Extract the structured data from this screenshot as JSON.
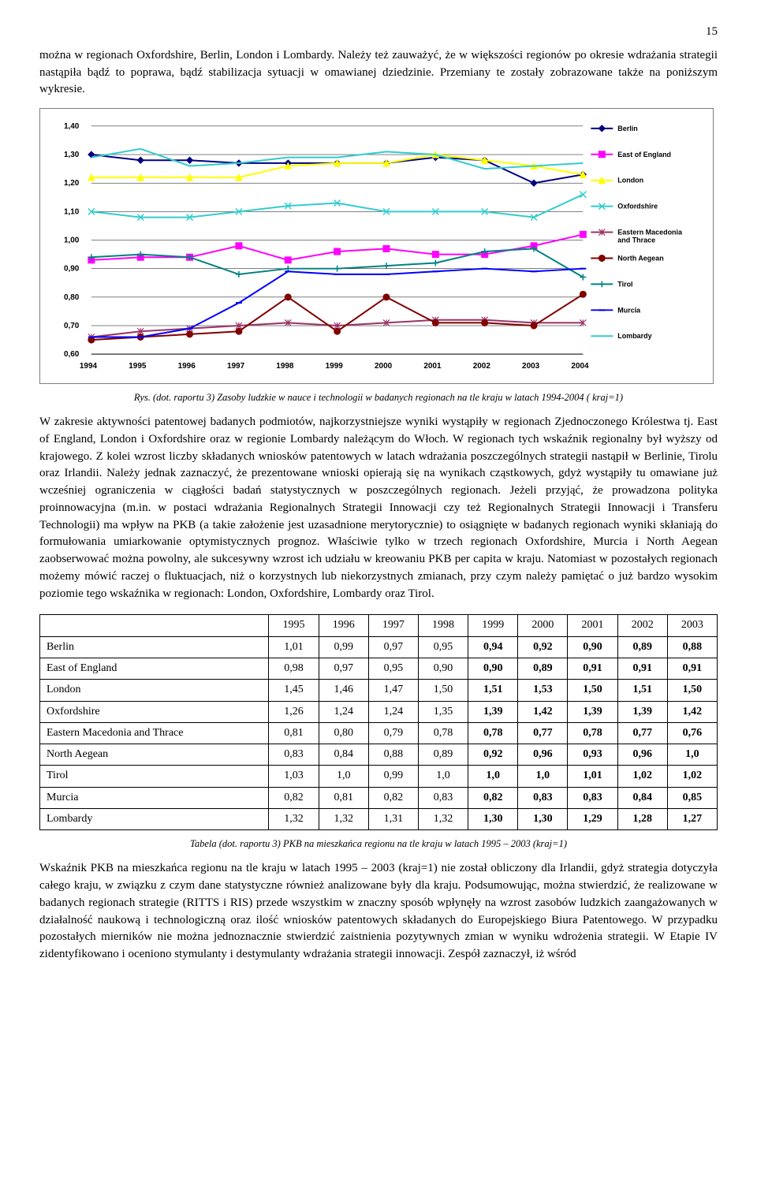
{
  "page_number": "15",
  "intro_paragraph": "można w regionach Oxfordshire, Berlin, London i Lombardy. Należy też zauważyć, że w większości regionów po okresie wdrażania strategii nastąpiła bądź to poprawa, bądź stabilizacja sytuacji w omawianej dziedzinie. Przemiany te zostały zobrazowane także na poniższym wykresie.",
  "chart": {
    "type": "line",
    "background_color": "#ffffff",
    "border_color": "#808080",
    "grid_color": "#000000",
    "axis_fontsize": 10,
    "axis_font": "Arial",
    "xlim": [
      1994,
      2004
    ],
    "ylim": [
      0.6,
      1.4
    ],
    "ytick_step": 0.1,
    "years": [
      1994,
      1995,
      1996,
      1997,
      1998,
      1999,
      2000,
      2001,
      2002,
      2003,
      2004
    ],
    "ytick_labels": [
      "0,60",
      "0,70",
      "0,80",
      "0,90",
      "1,00",
      "1,10",
      "1,20",
      "1,30",
      "1,40"
    ],
    "line_width": 2,
    "marker_size": 4,
    "series": [
      {
        "name": "Berlin",
        "color": "#000080",
        "marker": "diamond",
        "values": [
          1.3,
          1.28,
          1.28,
          1.27,
          1.27,
          1.27,
          1.27,
          1.29,
          1.28,
          1.2,
          1.23
        ]
      },
      {
        "name": "East of England",
        "color": "#ff00ff",
        "marker": "square",
        "values": [
          0.93,
          0.94,
          0.94,
          0.98,
          0.93,
          0.96,
          0.97,
          0.95,
          0.95,
          0.98,
          1.02
        ]
      },
      {
        "name": "London",
        "color": "#ffff00",
        "marker": "triangle",
        "values": [
          1.22,
          1.22,
          1.22,
          1.22,
          1.26,
          1.27,
          1.27,
          1.3,
          1.28,
          1.26,
          1.23
        ]
      },
      {
        "name": "Oxfordshire",
        "color": "#33cccc",
        "marker": "x",
        "values": [
          1.1,
          1.08,
          1.08,
          1.1,
          1.12,
          1.13,
          1.1,
          1.1,
          1.1,
          1.08,
          1.16
        ]
      },
      {
        "name": "Eastern Macedonia and Thrace",
        "color": "#993366",
        "marker": "star",
        "values": [
          0.66,
          0.68,
          0.69,
          0.7,
          0.71,
          0.7,
          0.71,
          0.72,
          0.72,
          0.71,
          0.71
        ]
      },
      {
        "name": "North Aegean",
        "color": "#800000",
        "marker": "circle",
        "values": [
          0.65,
          0.66,
          0.67,
          0.68,
          0.8,
          0.68,
          0.8,
          0.71,
          0.71,
          0.7,
          0.81
        ]
      },
      {
        "name": "Tirol",
        "color": "#008080",
        "marker": "plus",
        "values": [
          0.94,
          0.95,
          0.94,
          0.88,
          0.9,
          0.9,
          0.91,
          0.92,
          0.96,
          0.97,
          0.87
        ]
      },
      {
        "name": "Murcia",
        "color": "#0000ff",
        "marker": "dash",
        "values": [
          0.66,
          0.66,
          0.69,
          0.78,
          0.89,
          0.88,
          0.88,
          0.89,
          0.9,
          0.89,
          0.9
        ]
      },
      {
        "name": "Lombardy",
        "color": "#33cccc",
        "marker": "none",
        "values": [
          1.29,
          1.32,
          1.26,
          1.27,
          1.29,
          1.29,
          1.31,
          1.3,
          1.25,
          1.26,
          1.27
        ]
      }
    ]
  },
  "chart_caption": "Rys. (dot. raportu 3) Zasoby ludzkie w nauce i technologii w badanych regionach na tle kraju w latach 1994-2004 ( kraj=1)",
  "middle_paragraph": "W zakresie aktywności patentowej badanych podmiotów, najkorzystniejsze wyniki wystąpiły w regionach Zjednoczonego Królestwa tj. East of England, London i Oxfordshire oraz w regionie Lombardy należącym do Włoch. W regionach tych wskaźnik regionalny był wyższy od krajowego. Z kolei wzrost liczby składanych wniosków patentowych w latach wdrażania poszczególnych strategii nastąpił w Berlinie, Tirolu oraz Irlandii. Należy jednak zaznaczyć, że prezentowane wnioski opierają się na wynikach cząstkowych, gdyż wystąpiły tu omawiane już wcześniej ograniczenia w ciągłości badań statystycznych w poszczególnych regionach. Jeżeli przyjąć, że prowadzona polityka proinnowacyjna (m.in. w postaci wdrażania Regionalnych Strategii Innowacji czy też Regionalnych Strategii Innowacji i Transferu Technologii) ma wpływ na PKB (a takie założenie jest uzasadnione merytorycznie) to osiągnięte w badanych regionach wyniki skłaniają do formułowania umiarkowanie optymistycznych prognoz. Właściwie tylko w trzech regionach Oxfordshire, Murcia i North Aegean zaobserwować można powolny, ale sukcesywny wzrost ich udziału w kreowaniu PKB per capita w kraju. Natomiast w pozostałych regionach możemy mówić raczej o fluktuacjach, niż o korzystnych lub niekorzystnych zmianach, przy czym należy pamiętać o już bardzo wysokim poziomie tego wskaźnika w regionach: London, Oxfordshire, Lombardy oraz Tirol.",
  "table": {
    "columns": [
      "",
      "1995",
      "1996",
      "1997",
      "1998",
      "1999",
      "2000",
      "2001",
      "2002",
      "2003"
    ],
    "rows": [
      [
        "Berlin",
        "1,01",
        "0,99",
        "0,97",
        "0,95",
        "0,94",
        "0,92",
        "0,90",
        "0,89",
        "0,88"
      ],
      [
        "East of England",
        "0,98",
        "0,97",
        "0,95",
        "0,90",
        "0,90",
        "0,89",
        "0,91",
        "0,91",
        "0,91"
      ],
      [
        "London",
        "1,45",
        "1,46",
        "1,47",
        "1,50",
        "1,51",
        "1,53",
        "1,50",
        "1,51",
        "1,50"
      ],
      [
        "Oxfordshire",
        "1,26",
        "1,24",
        "1,24",
        "1,35",
        "1,39",
        "1,42",
        "1,39",
        "1,39",
        "1,42"
      ],
      [
        "Eastern Macedonia and Thrace",
        "0,81",
        "0,80",
        "0,79",
        "0,78",
        "0,78",
        "0,77",
        "0,78",
        "0,77",
        "0,76"
      ],
      [
        "North Aegean",
        "0,83",
        "0,84",
        "0,88",
        "0,89",
        "0,92",
        "0,96",
        "0,93",
        "0,96",
        "1,0"
      ],
      [
        "Tirol",
        "1,03",
        "1,0",
        "0,99",
        "1,0",
        "1,0",
        "1,0",
        "1,01",
        "1,02",
        "1,02"
      ],
      [
        "Murcia",
        "0,82",
        "0,81",
        "0,82",
        "0,83",
        "0,82",
        "0,83",
        "0,83",
        "0,84",
        "0,85"
      ],
      [
        "Lombardy",
        "1,32",
        "1,32",
        "1,31",
        "1,32",
        "1,30",
        "1,30",
        "1,29",
        "1,28",
        "1,27"
      ]
    ],
    "bold_cols_from": 5,
    "fontsize": 14,
    "border_color": "#000000"
  },
  "table_caption": "Tabela (dot. raportu 3) PKB na mieszkańca regionu na tle kraju w latach 1995 – 2003 (kraj=1)",
  "bottom_paragraph": "Wskaźnik PKB na mieszkańca regionu na tle kraju w latach 1995 – 2003 (kraj=1) nie został obliczony dla Irlandii, gdyż strategia dotyczyła całego kraju, w związku z czym dane statystyczne również analizowane były dla kraju. Podsumowując, można stwierdzić, że realizowane w badanych regionach strategie (RITTS i RIS) przede wszystkim w znaczny sposób wpłynęły na wzrost zasobów ludzkich zaangażowanych w działalność naukową i technologiczną oraz ilość wniosków patentowych składanych do Europejskiego Biura Patentowego. W przypadku pozostałych mierników nie można jednoznacznie stwierdzić zaistnienia pozytywnych zmian w wyniku wdrożenia strategii. W Etapie IV zidentyfikowano i oceniono stymulanty i destymulanty wdrażania strategii innowacji. Zespół zaznaczył, iż wśród"
}
